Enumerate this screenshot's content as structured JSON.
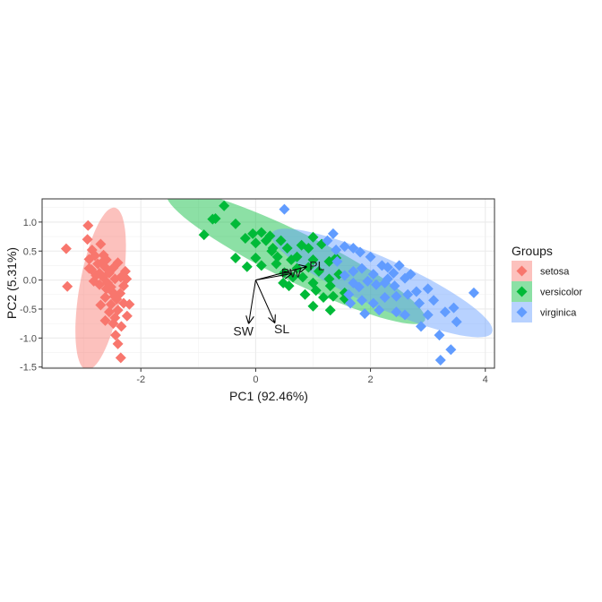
{
  "chart_data": {
    "type": "scatter",
    "title": "",
    "xlabel": "PC1 (92.46%)",
    "ylabel": "PC2 (5.31%)",
    "xlim": [
      -3.72,
      4.16
    ],
    "ylim": [
      -1.52,
      1.4
    ],
    "x_ticks": [
      -2,
      0,
      2,
      4
    ],
    "x_tick_labels": [
      "-2",
      "0",
      "2",
      "4"
    ],
    "y_ticks": [
      -1.5,
      -1.0,
      -0.5,
      0.0,
      0.5,
      1.0
    ],
    "y_tick_labels": [
      "-1.5",
      "-1.0",
      "-0.5",
      "0.0",
      "0.5",
      "1.0"
    ],
    "grid": true,
    "legend": {
      "title": "Groups",
      "placement": "right"
    },
    "series": [
      {
        "name": "setosa",
        "color": "#F8766D",
        "ellipse": {
          "cx": -2.7,
          "cy": -0.15,
          "rx": 1.42,
          "ry": 0.37,
          "angle_deg": 80
        },
        "points": [
          [
            -3.3,
            0.54
          ],
          [
            -3.28,
            -0.11
          ],
          [
            -2.92,
            0.94
          ],
          [
            -2.93,
            0.7
          ],
          [
            -2.85,
            0.52
          ],
          [
            -2.9,
            0.36
          ],
          [
            -2.8,
            0.42
          ],
          [
            -2.75,
            0.28
          ],
          [
            -2.86,
            0.18
          ],
          [
            -2.7,
            0.62
          ],
          [
            -2.68,
            0.3
          ],
          [
            -2.62,
            0.22
          ],
          [
            -2.66,
            0.05
          ],
          [
            -2.58,
            -0.05
          ],
          [
            -2.72,
            -0.08
          ],
          [
            -2.55,
            0.12
          ],
          [
            -2.48,
            0.21
          ],
          [
            -2.45,
            0.02
          ],
          [
            -2.5,
            -0.2
          ],
          [
            -2.62,
            -0.3
          ],
          [
            -2.7,
            -0.43
          ],
          [
            -2.42,
            -0.33
          ],
          [
            -2.36,
            -0.23
          ],
          [
            -2.3,
            -0.4
          ],
          [
            -2.55,
            -0.55
          ],
          [
            -2.45,
            -0.65
          ],
          [
            -2.34,
            -0.8
          ],
          [
            -2.44,
            -0.95
          ],
          [
            -2.4,
            -1.1
          ],
          [
            -2.35,
            -1.34
          ],
          [
            -2.2,
            -0.42
          ],
          [
            -2.35,
            0.05
          ],
          [
            -2.3,
            -0.1
          ],
          [
            -2.27,
            0.15
          ],
          [
            -2.78,
            0.08
          ],
          [
            -2.6,
            -0.15
          ],
          [
            -2.52,
            -0.42
          ],
          [
            -2.24,
            -0.62
          ],
          [
            -2.4,
            -0.52
          ],
          [
            -2.65,
            0.43
          ],
          [
            -2.82,
            -0.02
          ],
          [
            -2.48,
            -0.75
          ],
          [
            -2.6,
            0.35
          ],
          [
            -2.4,
            0.3
          ],
          [
            -2.72,
            0.12
          ],
          [
            -2.52,
            -0.12
          ],
          [
            -2.9,
            0.2
          ],
          [
            -2.62,
            -0.7
          ],
          [
            -2.25,
            0.02
          ],
          [
            -2.46,
            -0.28
          ]
        ]
      },
      {
        "name": "versicolor",
        "color": "#00BA38",
        "ellipse": {
          "cx": 0.7,
          "cy": 0.4,
          "rx": 2.5,
          "ry": 0.42,
          "angle_deg": -26
        },
        "points": [
          [
            -0.9,
            0.78
          ],
          [
            -0.75,
            1.05
          ],
          [
            -0.7,
            1.06
          ],
          [
            -0.55,
            1.28
          ],
          [
            -0.35,
            0.97
          ],
          [
            -0.35,
            0.38
          ],
          [
            -0.18,
            0.72
          ],
          [
            -0.05,
            0.8
          ],
          [
            0.0,
            0.64
          ],
          [
            0.1,
            0.82
          ],
          [
            0.18,
            0.68
          ],
          [
            0.25,
            0.76
          ],
          [
            0.0,
            0.38
          ],
          [
            0.1,
            0.25
          ],
          [
            -0.15,
            0.23
          ],
          [
            0.28,
            0.5
          ],
          [
            0.38,
            0.4
          ],
          [
            0.44,
            0.68
          ],
          [
            0.36,
            0.28
          ],
          [
            0.5,
            0.13
          ],
          [
            0.55,
            0.55
          ],
          [
            0.62,
            0.35
          ],
          [
            0.72,
            0.4
          ],
          [
            0.72,
            0.2
          ],
          [
            0.65,
            0.05
          ],
          [
            0.58,
            -0.1
          ],
          [
            0.82,
            0.05
          ],
          [
            0.92,
            0.22
          ],
          [
            0.92,
            0.55
          ],
          [
            1.0,
            0.35
          ],
          [
            1.1,
            0.15
          ],
          [
            1.0,
            -0.05
          ],
          [
            0.86,
            -0.25
          ],
          [
            1.0,
            -0.45
          ],
          [
            1.05,
            -0.18
          ],
          [
            1.18,
            -0.3
          ],
          [
            1.3,
            -0.1
          ],
          [
            1.3,
            -0.52
          ],
          [
            1.45,
            0.1
          ],
          [
            1.4,
            0.38
          ],
          [
            1.28,
            0.32
          ],
          [
            1.28,
            0.02
          ],
          [
            1.55,
            -0.22
          ],
          [
            1.35,
            -0.28
          ],
          [
            1.15,
            0.62
          ],
          [
            1.0,
            0.74
          ],
          [
            0.8,
            0.6
          ],
          [
            0.3,
            0.55
          ],
          [
            1.55,
            -0.32
          ],
          [
            0.48,
            -0.05
          ]
        ]
      },
      {
        "name": "virginica",
        "color": "#619CFF",
        "ellipse": {
          "cx": 2.2,
          "cy": -0.05,
          "rx": 2.1,
          "ry": 0.42,
          "angle_deg": -24
        },
        "points": [
          [
            0.5,
            1.22
          ],
          [
            1.25,
            0.68
          ],
          [
            1.35,
            0.8
          ],
          [
            1.4,
            0.52
          ],
          [
            1.55,
            0.58
          ],
          [
            1.7,
            0.55
          ],
          [
            1.82,
            0.48
          ],
          [
            2.0,
            0.4
          ],
          [
            1.85,
            0.2
          ],
          [
            1.7,
            0.15
          ],
          [
            2.05,
            0.1
          ],
          [
            2.2,
            0.25
          ],
          [
            2.3,
            0.22
          ],
          [
            2.3,
            0.02
          ],
          [
            2.4,
            0.12
          ],
          [
            2.5,
            0.25
          ],
          [
            2.6,
            0.03
          ],
          [
            2.42,
            -0.1
          ],
          [
            2.25,
            -0.05
          ],
          [
            2.1,
            -0.08
          ],
          [
            1.95,
            -0.02
          ],
          [
            1.8,
            -0.12
          ],
          [
            1.7,
            -0.05
          ],
          [
            1.62,
            -0.25
          ],
          [
            1.85,
            -0.35
          ],
          [
            2.05,
            -0.4
          ],
          [
            2.25,
            -0.3
          ],
          [
            2.45,
            -0.28
          ],
          [
            2.65,
            -0.25
          ],
          [
            2.8,
            -0.2
          ],
          [
            2.85,
            -0.4
          ],
          [
            3.0,
            -0.15
          ],
          [
            3.1,
            -0.35
          ],
          [
            3.3,
            -0.55
          ],
          [
            3.45,
            -0.48
          ],
          [
            3.5,
            -0.72
          ],
          [
            2.6,
            -0.6
          ],
          [
            2.45,
            -0.55
          ],
          [
            1.55,
            0.08
          ],
          [
            1.65,
            -0.4
          ],
          [
            1.9,
            -0.58
          ],
          [
            2.15,
            -0.52
          ],
          [
            2.7,
            0.1
          ],
          [
            3.2,
            -0.95
          ],
          [
            3.4,
            -1.2
          ],
          [
            3.22,
            -1.38
          ],
          [
            3.8,
            -0.22
          ],
          [
            3.0,
            -0.6
          ],
          [
            1.42,
            0.32
          ],
          [
            2.88,
            -0.8
          ]
        ]
      }
    ],
    "loadings": [
      {
        "label": "PL",
        "x": 0.88,
        "y": 0.23
      },
      {
        "label": "PW",
        "x": 0.62,
        "y": 0.11
      },
      {
        "label": "SL",
        "x": 0.33,
        "y": -0.73
      },
      {
        "label": "SW",
        "x": -0.12,
        "y": -0.74
      }
    ],
    "loadings_origin": [
      0,
      0
    ]
  }
}
